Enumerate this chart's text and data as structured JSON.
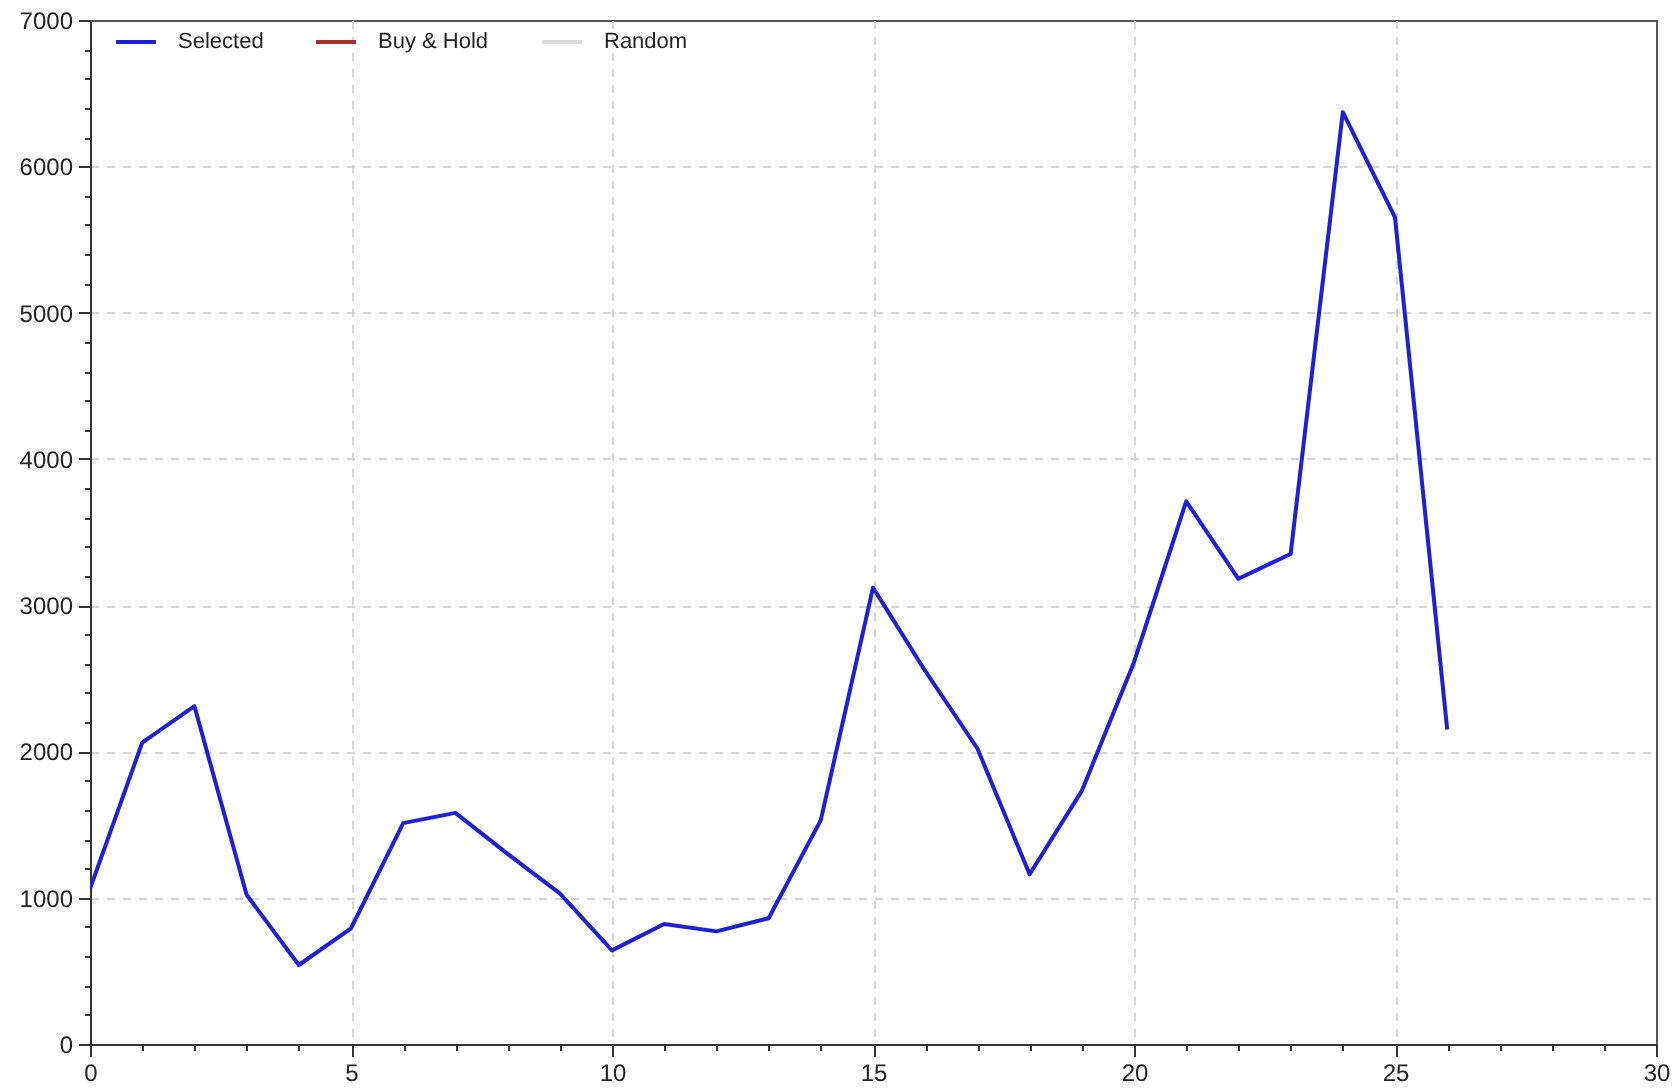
{
  "chart_data": {
    "type": "line",
    "x": [
      0,
      1,
      2,
      3,
      4,
      5,
      6,
      7,
      8,
      9,
      10,
      11,
      12,
      13,
      14,
      15,
      16,
      17,
      18,
      19,
      20,
      21,
      22,
      23,
      24,
      25,
      26
    ],
    "series": [
      {
        "name": "Selected",
        "color": "#1f1fd6",
        "values": [
          1060,
          2060,
          2310,
          1020,
          540,
          790,
          1510,
          1580,
          1300,
          1030,
          640,
          820,
          770,
          860,
          1530,
          3120,
          2550,
          2020,
          1160,
          1730,
          2610,
          3710,
          3180,
          3350,
          6370,
          5650,
          2150
        ]
      },
      {
        "name": "Buy & Hold",
        "color": "#a33030",
        "values": [
          null,
          null,
          null,
          null,
          null,
          null,
          null,
          null,
          null,
          null,
          null,
          null,
          null,
          null,
          null,
          null,
          null,
          null,
          null,
          null,
          null,
          null,
          null,
          null,
          null,
          null,
          null
        ]
      },
      {
        "name": "Random",
        "color": "#dcdcdc",
        "values": [
          null,
          null,
          null,
          null,
          null,
          null,
          null,
          null,
          null,
          null,
          null,
          null,
          null,
          null,
          null,
          null,
          null,
          null,
          null,
          null,
          null,
          null,
          null,
          null,
          null,
          null,
          null
        ]
      }
    ],
    "xlim": [
      0,
      30
    ],
    "xticks": [
      0,
      {
        "value": 1,
        "label": null
      },
      {
        "value": 2,
        "label": null
      },
      {
        "value": 3,
        "label": null
      },
      {
        "value": 4,
        "label": null
      },
      5,
      {
        "value": 6,
        "label": null
      },
      {
        "value": 7,
        "label": null
      },
      {
        "value": 8,
        "label": null
      },
      {
        "value": 9,
        "label": null
      },
      10,
      {
        "value": 11,
        "label": null
      },
      {
        "value": 12,
        "label": null
      },
      {
        "value": 13,
        "label": null
      },
      {
        "value": 14,
        "label": null
      },
      15,
      {
        "value": 16,
        "label": null
      },
      {
        "value": 17,
        "label": null
      },
      {
        "value": 18,
        "label": null
      },
      {
        "value": 19,
        "label": null
      },
      20,
      {
        "value": 21,
        "label": null
      },
      {
        "value": 22,
        "label": null
      },
      {
        "value": 23,
        "label": null
      },
      {
        "value": 24,
        "label": null
      },
      25,
      {
        "value": 26,
        "label": null
      },
      {
        "value": 27,
        "label": null
      },
      {
        "value": 28,
        "label": null
      },
      {
        "value": 29,
        "label": null
      },
      30
    ],
    "ylim": [
      0,
      7000
    ],
    "yticks": [
      0,
      {
        "value": 200,
        "label": null
      },
      {
        "value": 400,
        "label": null
      },
      {
        "value": 600,
        "label": null
      },
      {
        "value": 800,
        "label": null
      },
      1000,
      {
        "value": 1200,
        "label": null
      },
      {
        "value": 1400,
        "label": null
      },
      {
        "value": 1600,
        "label": null
      },
      {
        "value": 1800,
        "label": null
      },
      2000,
      {
        "value": 2200,
        "label": null
      },
      {
        "value": 2400,
        "label": null
      },
      {
        "value": 2600,
        "label": null
      },
      {
        "value": 2800,
        "label": null
      },
      3000,
      {
        "value": 3200,
        "label": null
      },
      {
        "value": 3400,
        "label": null
      },
      {
        "value": 3600,
        "label": null
      },
      {
        "value": 3800,
        "label": null
      },
      4000,
      {
        "value": 4200,
        "label": null
      },
      {
        "value": 4400,
        "label": null
      },
      {
        "value": 4600,
        "label": null
      },
      {
        "value": 4800,
        "label": null
      },
      5000,
      {
        "value": 5200,
        "label": null
      },
      {
        "value": 5400,
        "label": null
      },
      {
        "value": 5600,
        "label": null
      },
      {
        "value": 5800,
        "label": null
      },
      6000,
      {
        "value": 6200,
        "label": null
      },
      {
        "value": 6400,
        "label": null
      },
      {
        "value": 6600,
        "label": null
      },
      {
        "value": 6800,
        "label": null
      },
      7000
    ],
    "grid": true,
    "legend": "top left"
  }
}
